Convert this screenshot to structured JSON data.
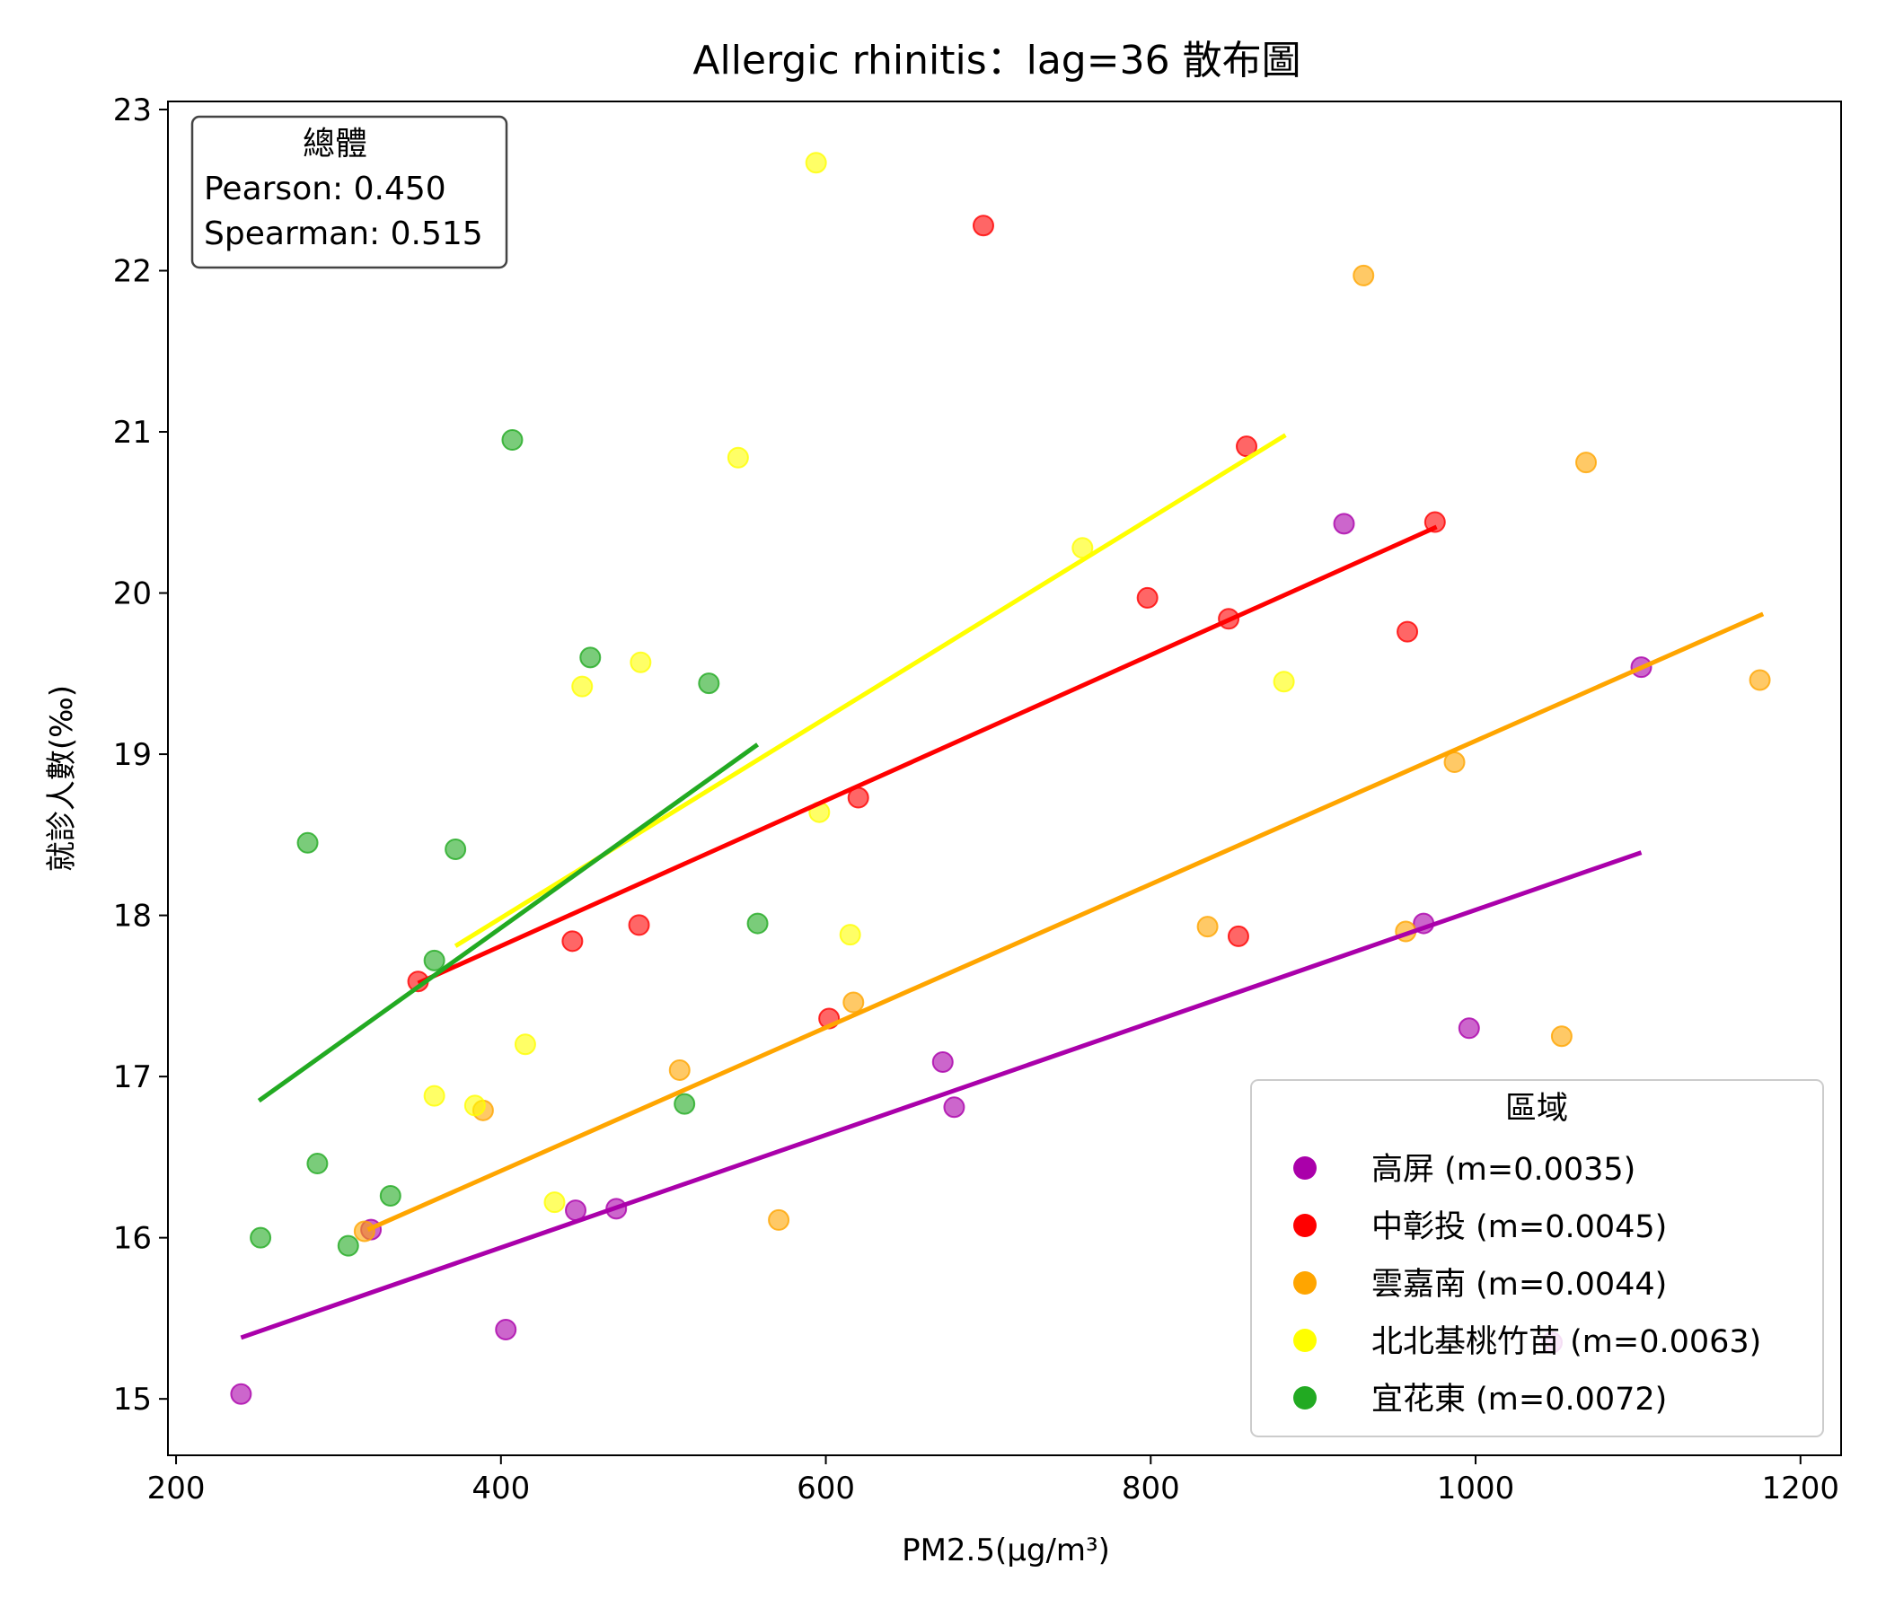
{
  "chart_data": {
    "type": "scatter",
    "title": "Allergic rhinitis：lag=36 散布圖",
    "xlabel": "PM2.5(μg/m³)",
    "ylabel": "就診人數(‰)",
    "xlim": [
      195,
      1225
    ],
    "ylim": [
      14.65,
      23.05
    ],
    "xticks": [
      200,
      400,
      600,
      800,
      1000,
      1200
    ],
    "yticks": [
      15,
      16,
      17,
      18,
      19,
      20,
      21,
      22,
      23
    ],
    "grid": false,
    "stats_box": {
      "title": "總體",
      "pearson": "Pearson: 0.450",
      "spearman": "Spearman: 0.515"
    },
    "legend": {
      "title": "區域",
      "placement": "lower-right"
    },
    "series": [
      {
        "name": "高屏 (m=0.0035)",
        "color": "#aa00aa",
        "fit": [
          [
            240,
            15.38
          ],
          [
            1102,
            18.39
          ]
        ],
        "points": [
          [
            240,
            15.03
          ],
          [
            320,
            16.05
          ],
          [
            403,
            15.43
          ],
          [
            446,
            16.17
          ],
          [
            471,
            16.18
          ],
          [
            672,
            17.09
          ],
          [
            679,
            16.81
          ],
          [
            919,
            20.43
          ],
          [
            968,
            17.95
          ],
          [
            996,
            17.3
          ],
          [
            1047,
            15.35
          ],
          [
            1102,
            19.54
          ]
        ]
      },
      {
        "name": "中彰投 (m=0.0045)",
        "color": "#ff0000",
        "fit": [
          [
            349,
            17.58
          ],
          [
            976,
            20.41
          ]
        ],
        "points": [
          [
            349,
            17.59
          ],
          [
            444,
            17.84
          ],
          [
            485,
            17.94
          ],
          [
            602,
            17.36
          ],
          [
            620,
            18.73
          ],
          [
            697,
            22.28
          ],
          [
            798,
            19.97
          ],
          [
            848,
            19.84
          ],
          [
            854,
            17.87
          ],
          [
            859,
            20.91
          ],
          [
            958,
            19.76
          ],
          [
            975,
            20.44
          ]
        ]
      },
      {
        "name": "雲嘉南 (m=0.0044)",
        "color": "#ffa500",
        "fit": [
          [
            318,
            16.05
          ],
          [
            1177,
            19.87
          ]
        ],
        "points": [
          [
            316,
            16.04
          ],
          [
            389,
            16.79
          ],
          [
            510,
            17.04
          ],
          [
            571,
            16.11
          ],
          [
            617,
            17.46
          ],
          [
            835,
            17.93
          ],
          [
            931,
            21.97
          ],
          [
            957,
            17.9
          ],
          [
            987,
            18.95
          ],
          [
            1053,
            17.25
          ],
          [
            1068,
            20.81
          ],
          [
            1175,
            19.46
          ]
        ]
      },
      {
        "name": "北北基桃竹苗 (m=0.0063)",
        "color": "#ffff00",
        "fit": [
          [
            372,
            17.81
          ],
          [
            883,
            20.98
          ]
        ],
        "points": [
          [
            359,
            16.88
          ],
          [
            384,
            16.82
          ],
          [
            415,
            17.2
          ],
          [
            433,
            16.22
          ],
          [
            450,
            19.42
          ],
          [
            486,
            19.57
          ],
          [
            546,
            20.84
          ],
          [
            594,
            22.67
          ],
          [
            596,
            18.64
          ],
          [
            615,
            17.88
          ],
          [
            758,
            20.28
          ],
          [
            882,
            19.45
          ]
        ]
      },
      {
        "name": "宜花東 (m=0.0072)",
        "color": "#22aa22",
        "fit": [
          [
            251,
            16.85
          ],
          [
            558,
            19.06
          ]
        ],
        "points": [
          [
            252,
            16.0
          ],
          [
            281,
            18.45
          ],
          [
            287,
            16.46
          ],
          [
            306,
            15.95
          ],
          [
            332,
            16.26
          ],
          [
            359,
            17.72
          ],
          [
            372,
            18.41
          ],
          [
            407,
            20.95
          ],
          [
            455,
            19.6
          ],
          [
            513,
            16.83
          ],
          [
            528,
            19.44
          ],
          [
            558,
            17.95
          ]
        ]
      }
    ]
  }
}
